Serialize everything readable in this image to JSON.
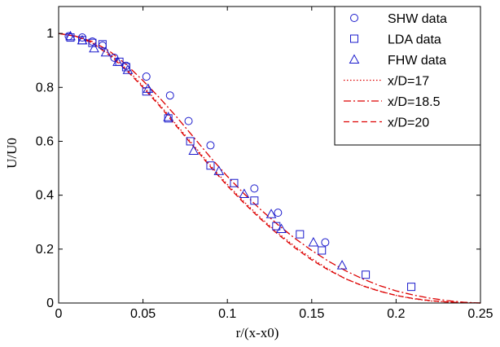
{
  "chart_data": {
    "type": "line",
    "title": "",
    "xlabel": "r/(x-x0)",
    "ylabel": "U/U0",
    "xlim": [
      0,
      0.25
    ],
    "ylim": [
      0,
      1.1
    ],
    "xticks": [
      0,
      0.05,
      0.1,
      0.15,
      0.2,
      0.25
    ],
    "xtick_labels": [
      "0",
      "0.05",
      "0.1",
      "0.15",
      "0.2",
      "0.25"
    ],
    "yticks": [
      0,
      0.2,
      0.4,
      0.6,
      0.8,
      1
    ],
    "ytick_labels": [
      "0",
      "0.2",
      "0.4",
      "0.6",
      "0.8",
      "1"
    ],
    "grid": false,
    "legend_position": "top-right",
    "colors": {
      "markers": "#1a1acc",
      "lines": "#dd0000",
      "axes": "#000000"
    },
    "series": [
      {
        "name": "SHW data",
        "kind": "scatter",
        "marker": "circle",
        "x": [
          0.006,
          0.014,
          0.02,
          0.026,
          0.033,
          0.04,
          0.052,
          0.066,
          0.077,
          0.09,
          0.116,
          0.13,
          0.158
        ],
        "y": [
          0.99,
          0.985,
          0.97,
          0.955,
          0.91,
          0.88,
          0.84,
          0.77,
          0.675,
          0.585,
          0.425,
          0.335,
          0.225
        ]
      },
      {
        "name": "LDA data",
        "kind": "scatter",
        "marker": "square",
        "x": [
          0.007,
          0.014,
          0.02,
          0.026,
          0.036,
          0.04,
          0.052,
          0.065,
          0.078,
          0.09,
          0.104,
          0.116,
          0.129,
          0.143,
          0.156,
          0.182,
          0.209
        ],
        "y": [
          0.985,
          0.975,
          0.965,
          0.96,
          0.895,
          0.875,
          0.785,
          0.685,
          0.6,
          0.51,
          0.445,
          0.38,
          0.285,
          0.255,
          0.195,
          0.105,
          0.06
        ]
      },
      {
        "name": "FHW data",
        "kind": "scatter",
        "marker": "triangle",
        "x": [
          0.007,
          0.014,
          0.021,
          0.028,
          0.035,
          0.041,
          0.053,
          0.065,
          0.08,
          0.095,
          0.11,
          0.126,
          0.132,
          0.151,
          0.168
        ],
        "y": [
          0.99,
          0.975,
          0.945,
          0.93,
          0.895,
          0.865,
          0.795,
          0.69,
          0.565,
          0.49,
          0.405,
          0.33,
          0.275,
          0.225,
          0.14
        ]
      },
      {
        "name": "x/D=17",
        "kind": "line",
        "dash": "dotted",
        "x": [
          0,
          0.01,
          0.02,
          0.03,
          0.04,
          0.05,
          0.06,
          0.07,
          0.08,
          0.09,
          0.1,
          0.11,
          0.12,
          0.13,
          0.14,
          0.15,
          0.16,
          0.17,
          0.18,
          0.19,
          0.2,
          0.21,
          0.22,
          0.23,
          0.24,
          0.25
        ],
        "y": [
          1.0,
          0.99,
          0.965,
          0.925,
          0.87,
          0.805,
          0.735,
          0.66,
          0.585,
          0.51,
          0.44,
          0.375,
          0.315,
          0.26,
          0.21,
          0.165,
          0.125,
          0.09,
          0.065,
          0.045,
          0.028,
          0.016,
          0.008,
          0.004,
          0.001,
          0.0
        ]
      },
      {
        "name": "x/D=18.5",
        "kind": "line",
        "dash": "dashdot",
        "x": [
          0,
          0.01,
          0.02,
          0.03,
          0.04,
          0.05,
          0.06,
          0.07,
          0.08,
          0.09,
          0.1,
          0.11,
          0.12,
          0.13,
          0.14,
          0.15,
          0.16,
          0.17,
          0.18,
          0.19,
          0.2,
          0.21,
          0.22,
          0.23,
          0.24,
          0.25
        ],
        "y": [
          1.0,
          0.99,
          0.97,
          0.935,
          0.885,
          0.825,
          0.76,
          0.69,
          0.615,
          0.54,
          0.47,
          0.405,
          0.345,
          0.29,
          0.24,
          0.195,
          0.155,
          0.12,
          0.09,
          0.065,
          0.045,
          0.03,
          0.018,
          0.009,
          0.003,
          0.0
        ]
      },
      {
        "name": "x/D=20",
        "kind": "line",
        "dash": "dashed",
        "x": [
          0,
          0.01,
          0.02,
          0.03,
          0.04,
          0.05,
          0.06,
          0.07,
          0.08,
          0.09,
          0.1,
          0.11,
          0.12,
          0.13,
          0.14,
          0.15,
          0.16,
          0.17,
          0.18,
          0.19,
          0.2,
          0.21,
          0.22,
          0.23,
          0.24,
          0.25
        ],
        "y": [
          1.0,
          0.99,
          0.965,
          0.92,
          0.865,
          0.8,
          0.73,
          0.655,
          0.58,
          0.505,
          0.435,
          0.37,
          0.31,
          0.255,
          0.205,
          0.16,
          0.122,
          0.09,
          0.064,
          0.044,
          0.028,
          0.017,
          0.009,
          0.004,
          0.001,
          0.0
        ]
      }
    ]
  }
}
